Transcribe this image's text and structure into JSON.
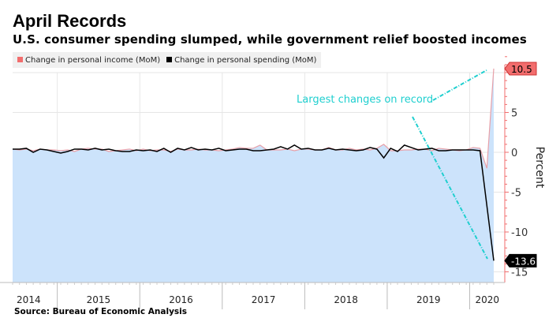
{
  "chart_data": {
    "type": "line",
    "title": "April Records",
    "subtitle": "U.S. consumer spending slumped, while government relief boosted incomes",
    "ylabel": "Percent",
    "ylim": [
      -15.5,
      12.5
    ],
    "yticks": [
      5,
      0,
      -5,
      -10,
      -15
    ],
    "x_start": "2014-06",
    "x_end": "2020-04",
    "frequency": "monthly",
    "year_labels": [
      "2014",
      "2015",
      "2016",
      "2017",
      "2018",
      "2019",
      "2020"
    ],
    "grid": true,
    "legend_position": "top-left",
    "series": [
      {
        "name": "Change in personal income (MoM)",
        "color": "#f26d6d",
        "fill": "#cce3fb",
        "values": [
          0.4,
          0.3,
          0.4,
          0.2,
          0.4,
          0.3,
          0.3,
          0.2,
          0.3,
          0.1,
          0.4,
          0.5,
          0.4,
          0.4,
          0.1,
          0.2,
          0.3,
          0.4,
          0.2,
          0.4,
          0.2,
          0.3,
          0.3,
          0.1,
          0.4,
          0.3,
          0.3,
          0.4,
          0.3,
          0.3,
          0.2,
          0.3,
          0.4,
          0.6,
          0.5,
          0.5,
          0.9,
          0.3,
          0.3,
          0.3,
          0.4,
          0.2,
          0.4,
          0.4,
          0.3,
          0.3,
          0.6,
          0.3,
          0.3,
          0.5,
          0.3,
          0.4,
          0.3,
          0.5,
          1.0,
          0.2,
          0.2,
          0.3,
          0.3,
          0.4,
          0.4,
          0.2,
          0.5,
          0.4,
          0.3,
          0.2,
          0.3,
          0.6,
          0.5,
          -2.0,
          10.5
        ]
      },
      {
        "name": "Change in personal spending (MoM)",
        "color": "#000000",
        "values": [
          0.4,
          0.4,
          0.5,
          0.0,
          0.4,
          0.3,
          0.1,
          -0.1,
          0.1,
          0.4,
          0.4,
          0.3,
          0.5,
          0.3,
          0.4,
          0.2,
          0.1,
          0.1,
          0.3,
          0.2,
          0.3,
          0.1,
          0.5,
          0.0,
          0.5,
          0.3,
          0.6,
          0.3,
          0.4,
          0.3,
          0.5,
          0.2,
          0.3,
          0.4,
          0.4,
          0.2,
          0.2,
          0.3,
          0.4,
          0.7,
          0.4,
          0.9,
          0.4,
          0.5,
          0.3,
          0.3,
          0.5,
          0.3,
          0.4,
          0.3,
          0.2,
          0.3,
          0.6,
          0.4,
          -0.7,
          0.5,
          0.1,
          0.9,
          0.6,
          0.3,
          0.4,
          0.5,
          0.2,
          0.2,
          0.3,
          0.3,
          0.3,
          0.3,
          0.2,
          -6.7,
          -13.6
        ]
      }
    ],
    "end_labels": {
      "income": "10.5",
      "spending": "-13.6"
    },
    "annotation": "Largest changes on record",
    "annotation_color": "#1fcfcf"
  },
  "source": "Source: Bureau of Economic Analysis"
}
